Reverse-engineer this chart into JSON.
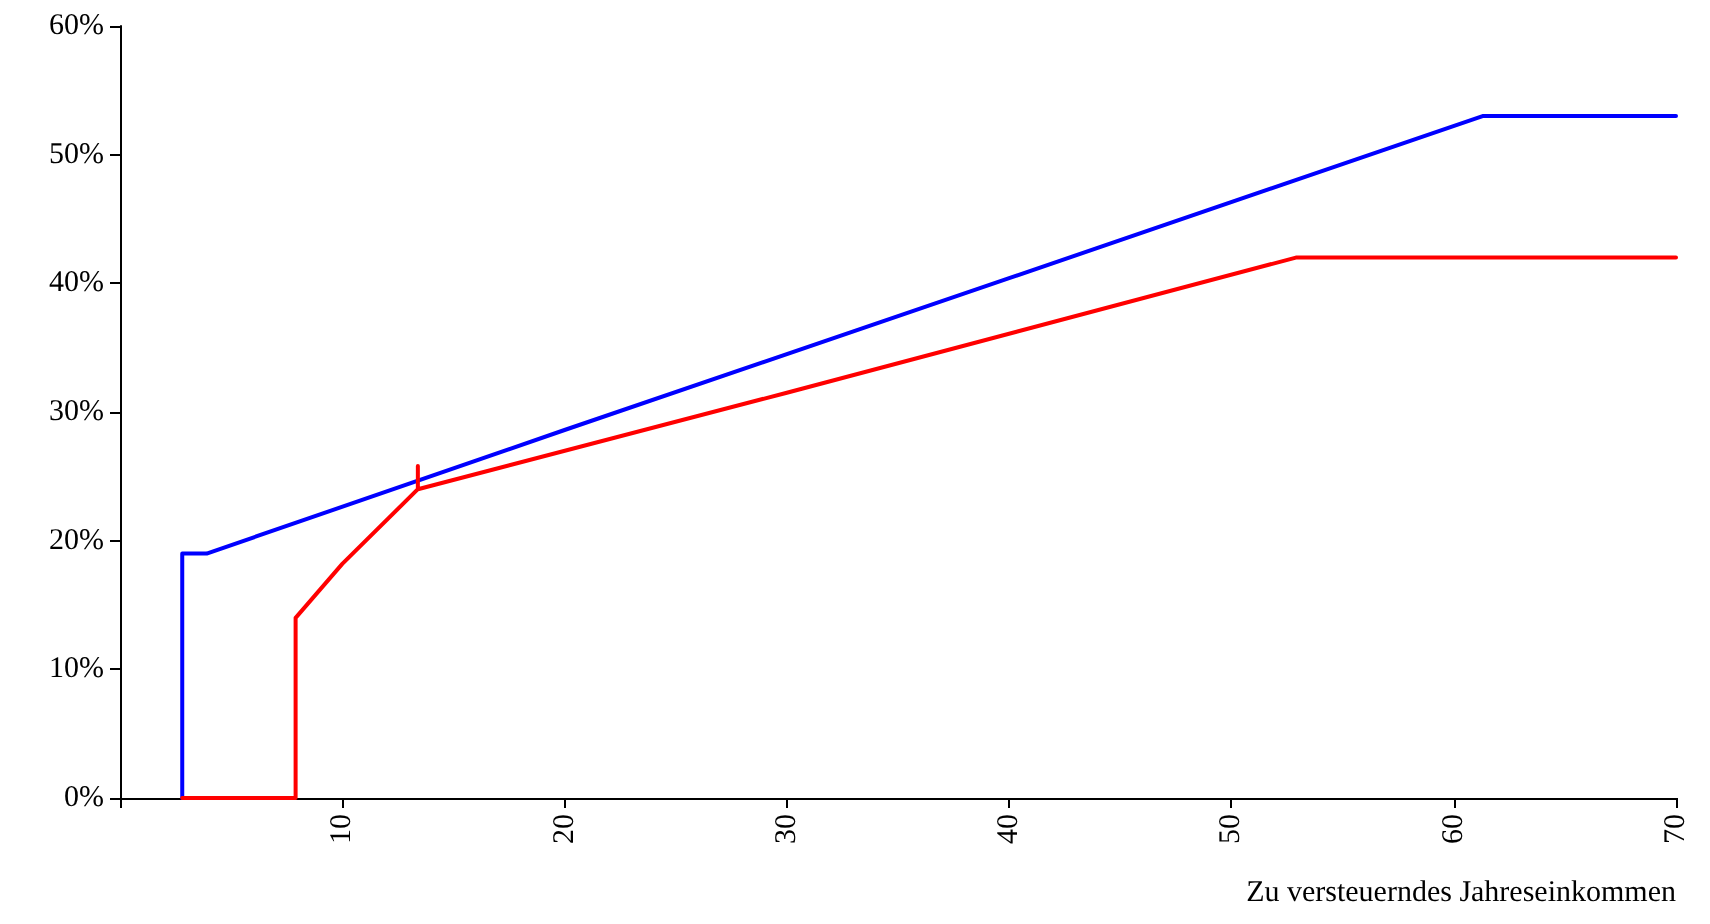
{
  "chart_data": {
    "type": "line",
    "xlabel": "Zu versteuerndes Jahreseinkommen",
    "xlim": [
      0,
      70
    ],
    "xticks": [
      {
        "value": 0,
        "label": null
      },
      10,
      20,
      30,
      40,
      50,
      60,
      70
    ],
    "ylim": [
      0,
      60
    ],
    "yticks": [
      {
        "value": 0,
        "label": "0%"
      },
      {
        "value": 10,
        "label": "10%"
      },
      {
        "value": 20,
        "label": "20%"
      },
      {
        "value": 30,
        "label": "30%"
      },
      {
        "value": 40,
        "label": "40%"
      },
      {
        "value": 50,
        "label": "50%"
      },
      {
        "value": 60,
        "label": "60%"
      }
    ],
    "grid": false,
    "legend": false,
    "marker": "none",
    "line_style": "solid",
    "series": [
      {
        "color": "#0000ff",
        "x": [
          2.8,
          2.8,
          3.9,
          20,
          40,
          61.3,
          70
        ],
        "values": [
          0,
          19,
          19,
          28.6,
          40.4,
          53,
          53
        ]
      },
      {
        "color": "#ff0000",
        "x": [
          2.8,
          7.9,
          7.9,
          10,
          13.4,
          13.4,
          13.4,
          30,
          52.9,
          70
        ],
        "values": [
          0,
          0,
          14,
          18.2,
          24,
          25.8,
          24,
          31.5,
          42,
          42
        ]
      }
    ]
  }
}
